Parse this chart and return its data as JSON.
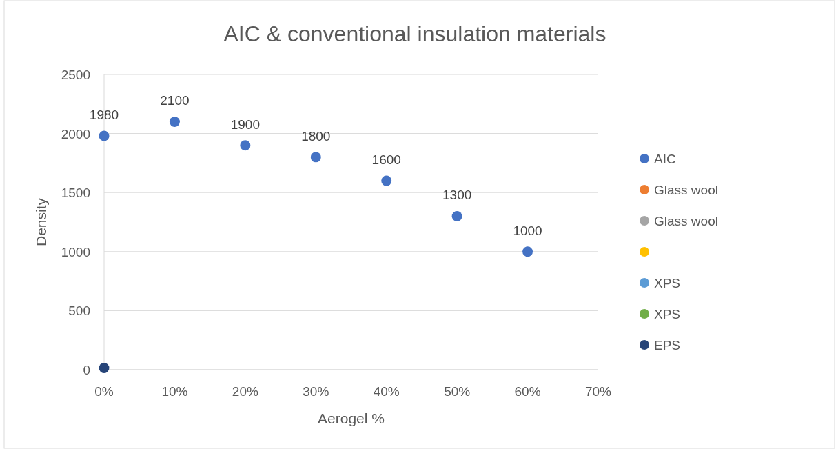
{
  "chart_data": {
    "type": "scatter",
    "title": "AIC & conventional insulation materials",
    "xlabel": "Aerogel %",
    "ylabel": "Density",
    "xlim": [
      0,
      70
    ],
    "xticks": [
      {
        "value": 0,
        "label": "0%"
      },
      {
        "value": 10,
        "label": "10%"
      },
      {
        "value": 20,
        "label": "20%"
      },
      {
        "value": 30,
        "label": "30%"
      },
      {
        "value": 40,
        "label": "40%"
      },
      {
        "value": 50,
        "label": "50%"
      },
      {
        "value": 60,
        "label": "60%"
      },
      {
        "value": 70,
        "label": "70%"
      }
    ],
    "ylim": [
      0,
      2500
    ],
    "yticks": [
      0,
      500,
      1000,
      1500,
      2000,
      2500
    ],
    "grid": "y",
    "legend": "right",
    "marker": "circle",
    "series": [
      {
        "name": "AIC",
        "color": "#4472c4",
        "x": [
          0,
          10,
          20,
          30,
          40,
          50,
          60
        ],
        "values": [
          1980,
          2100,
          1900,
          1800,
          1600,
          1300,
          1000
        ],
        "value_labels": [
          "1980",
          "2100",
          "1900",
          "1800",
          "1600",
          "1300",
          "1000"
        ]
      },
      {
        "name": "Glass wool",
        "color": "#ed7d31",
        "values": [
          null
        ]
      },
      {
        "name": "Glass wool",
        "color": "#a5a5a5",
        "values": [
          null
        ]
      },
      {
        "color": "#ffc000",
        "values": [
          null
        ]
      },
      {
        "name": "XPS",
        "color": "#5b9bd5",
        "values": [
          null
        ]
      },
      {
        "name": "XPS",
        "color": "#70ad47",
        "values": [
          null
        ]
      },
      {
        "name": "EPS",
        "color": "#264478",
        "x": [
          0
        ],
        "values": [
          15
        ]
      }
    ]
  }
}
